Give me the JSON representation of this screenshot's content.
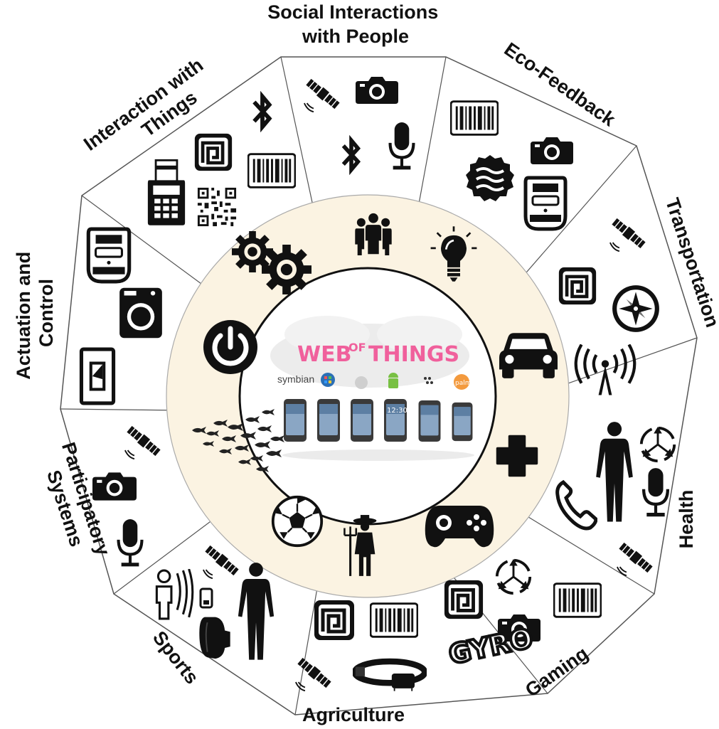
{
  "center": {
    "title_part1": "WEB",
    "title_of": "OF",
    "title_part2": "THINGS",
    "os_symbian": "symbian",
    "os_palm": "palm",
    "phone_clock": "12:30"
  },
  "categories": [
    {
      "id": "social",
      "lines": [
        "Social Interactions",
        "with People"
      ],
      "inner_icon": "people-group-icon",
      "icons": [
        "satellite-icon",
        "camera-icon",
        "bluetooth-icon",
        "microphone-icon"
      ]
    },
    {
      "id": "eco",
      "lines": [
        "Eco-Feedback"
      ],
      "inner_icon": "lightbulb-icon",
      "icons": [
        "barcode-icon",
        "camera-icon",
        "water-badge-icon",
        "smart-meter-icon"
      ]
    },
    {
      "id": "transport",
      "lines": [
        "Transportation"
      ],
      "inner_icon": "car-icon",
      "icons": [
        "satellite-icon",
        "nfc-tag-icon",
        "compass-icon",
        "radio-tower-icon"
      ]
    },
    {
      "id": "health",
      "lines": [
        "Health"
      ],
      "inner_icon": "medical-cross-icon",
      "icons": [
        "human-body-icon",
        "gyroscope-icon",
        "phone-handset-icon",
        "microphone-icon",
        "satellite-icon"
      ]
    },
    {
      "id": "gaming",
      "lines": [
        "Gaming"
      ],
      "inner_icon": "gamepad-icon",
      "icons": [
        "nfc-tag-icon",
        "gyroscope-icon",
        "barcode-icon",
        "camera-icon",
        "gyro-text-icon"
      ],
      "gyro_text": "GYRO"
    },
    {
      "id": "agriculture",
      "lines": [
        "Agriculture"
      ],
      "inner_icon": "farmer-icon",
      "icons": [
        "nfc-tag-icon",
        "barcode-icon",
        "satellite-icon",
        "animal-collar-icon"
      ]
    },
    {
      "id": "sports",
      "lines": [
        "Sports"
      ],
      "inner_icon": "soccer-ball-icon",
      "icons": [
        "heartbeat-person-icon",
        "satellite-icon",
        "wearable-icon",
        "fitness-band-icon",
        "human-body-icon"
      ]
    },
    {
      "id": "participatory",
      "lines": [
        "Participatory",
        "Systems"
      ],
      "inner_icon": "fish-school-icon",
      "icons": [
        "satellite-icon",
        "camera-icon",
        "microphone-icon"
      ]
    },
    {
      "id": "actuation",
      "lines": [
        "Actuation and",
        "Control"
      ],
      "inner_icon": "power-button-icon",
      "icons": [
        "smart-meter-icon",
        "washing-machine-icon",
        "light-switch-icon"
      ]
    },
    {
      "id": "interaction",
      "lines": [
        "Interaction with",
        "Things"
      ],
      "inner_icon": "gears-icon",
      "icons": [
        "bluetooth-icon",
        "nfc-tag-icon",
        "barcode-icon",
        "card-reader-icon",
        "qr-code-icon"
      ]
    }
  ],
  "colors": {
    "ring_fill": "#fbf3e2",
    "ink": "#111111",
    "title_pink": "#f0609c",
    "outline": "#555555"
  }
}
